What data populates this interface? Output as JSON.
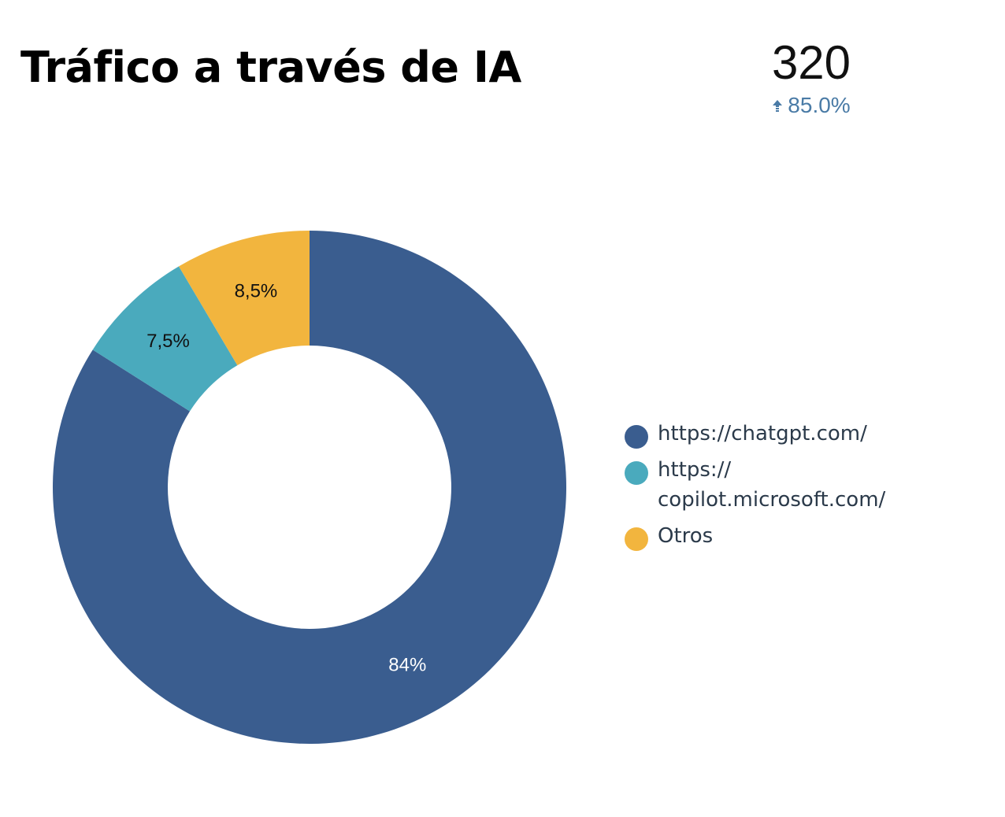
{
  "header": {
    "title": "Tráfico a través de IA"
  },
  "kpi": {
    "value": "320",
    "delta": "85.0%",
    "delta_direction": "up",
    "delta_icon": "arrow-up-icon",
    "delta_color": "#4a7ba6"
  },
  "chart_data": {
    "type": "pie",
    "subtype": "donut",
    "title": "",
    "slices": [
      {
        "label": "https://chatgpt.com/",
        "legend_lines": [
          "https://chatgpt.com/"
        ],
        "value": 84,
        "display": "84%",
        "color": "#3a5d8f",
        "label_color": "#ffffff"
      },
      {
        "label": "https://copilot.microsoft.com/",
        "legend_lines": [
          "https://",
          "copilot.microsoft.com/"
        ],
        "value": 7.5,
        "display": "7,5%",
        "color": "#4aaabd",
        "label_color": "#111111"
      },
      {
        "label": "Otros",
        "legend_lines": [
          "Otros"
        ],
        "value": 8.5,
        "display": "8,5%",
        "color": "#f2b53e",
        "label_color": "#111111"
      }
    ],
    "start": "12 o'clock",
    "direction": "clockwise",
    "legend_position": "right"
  }
}
